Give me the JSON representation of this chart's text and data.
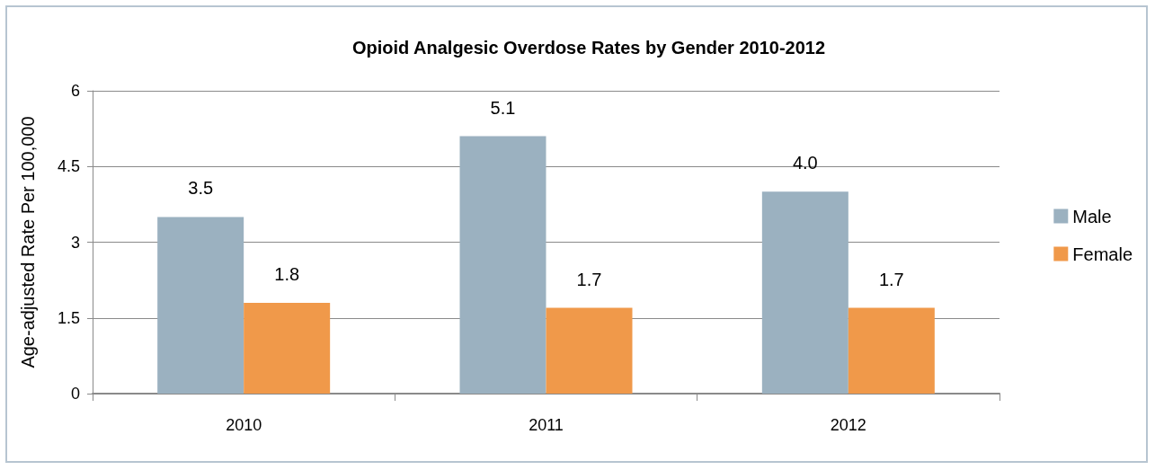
{
  "chart_data": {
    "type": "bar",
    "title": "Opioid Analgesic Overdose Rates by Gender 2010-2012",
    "ylabel": "Age-adjusted Rate Per 100,000",
    "categories": [
      "2010",
      "2011",
      "2012"
    ],
    "series": [
      {
        "name": "Male",
        "color": "#9bb1c0",
        "values": [
          3.5,
          5.1,
          4.0
        ],
        "value_labels": [
          "3.5",
          "5.1",
          "4.0"
        ]
      },
      {
        "name": "Female",
        "color": "#f0994a",
        "values": [
          1.8,
          1.7,
          1.7
        ],
        "value_labels": [
          "1.8",
          "1.7",
          "1.7"
        ]
      }
    ],
    "ylim": [
      0,
      6
    ],
    "yticks": [
      0,
      1.5,
      3,
      4.5,
      6
    ],
    "grid": "y",
    "legend": "right"
  }
}
